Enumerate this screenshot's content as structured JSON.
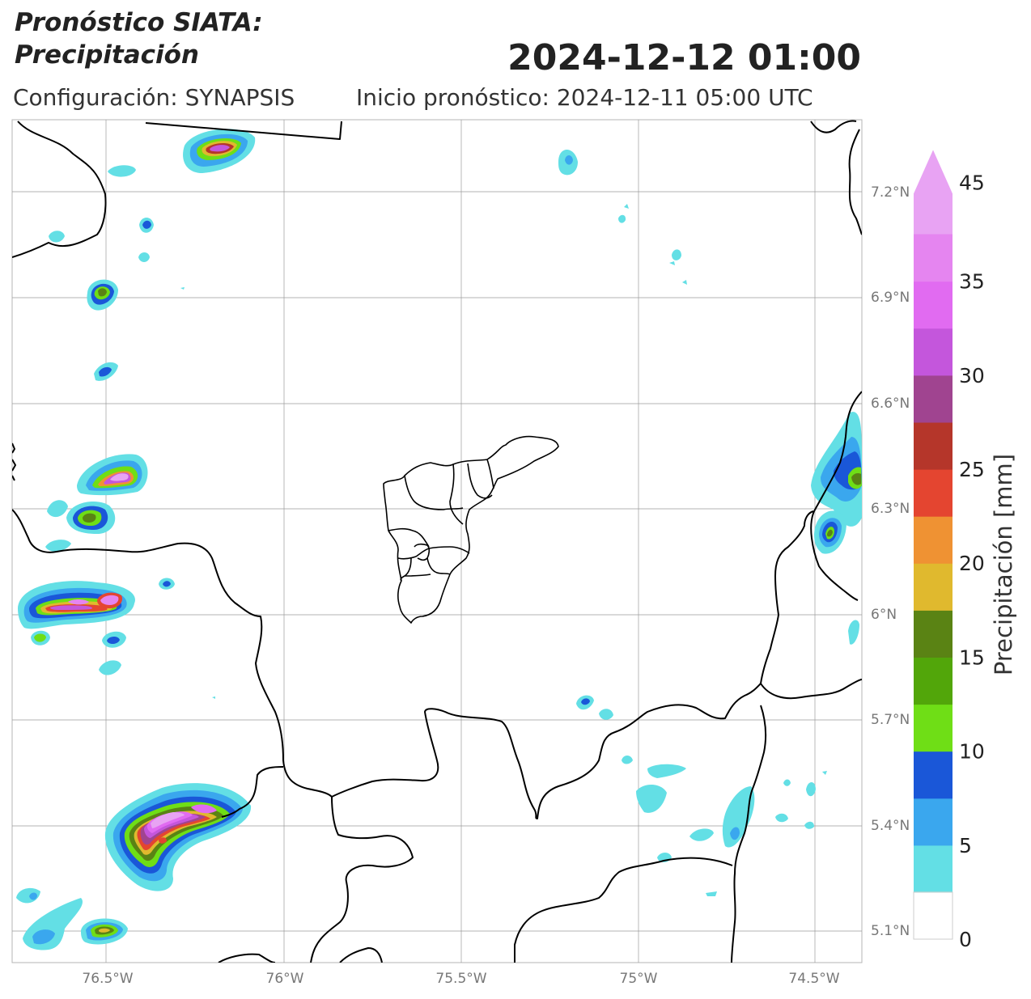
{
  "header": {
    "title_line1": "Pronóstico SIATA:",
    "title_line2": "Precipitación",
    "valid_datetime": "2024-12-12 01:00",
    "configuration": "Configuración: SYNAPSIS",
    "forecast_start": "Inicio pronóstico: 2024-12-11 05:00 UTC"
  },
  "map": {
    "lon_ticks": [
      "76.5°W",
      "76°W",
      "75.5°W",
      "75°W",
      "74.5°W"
    ],
    "lat_ticks": [
      "7.2°N",
      "6.9°N",
      "6.6°N",
      "6.3°N",
      "6°N",
      "5.7°N",
      "5.4°N",
      "5.1°N"
    ],
    "grid_color": "#9a9a9a",
    "border_color": "#000000"
  },
  "colorbar": {
    "label": "Precipitación [mm]",
    "tick_labels": [
      "0",
      "5",
      "10",
      "15",
      "20",
      "25",
      "30",
      "35",
      "45"
    ],
    "colors": [
      "#ffffff",
      "#63dfe5",
      "#3aa7ee",
      "#1a57d8",
      "#6fde16",
      "#52a60a",
      "#5a8314",
      "#e0b92e",
      "#ef9233",
      "#e44530",
      "#b5362a",
      "#a04490",
      "#c456dc",
      "#e16bf1",
      "#e585f0",
      "#e8a3f3"
    ],
    "extend": "max"
  }
}
